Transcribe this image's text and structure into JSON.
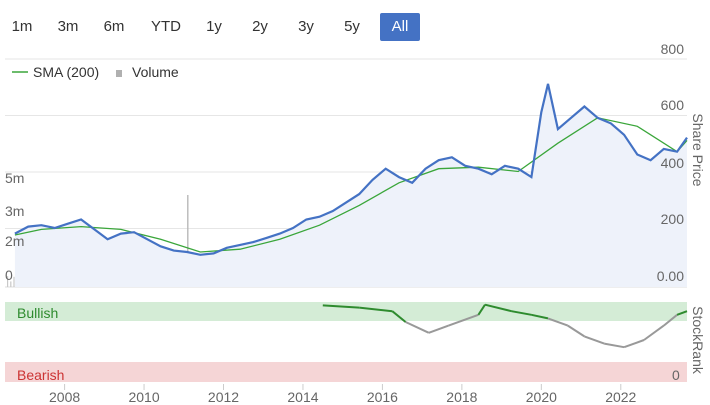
{
  "range_buttons": [
    {
      "label": "1m",
      "active": false
    },
    {
      "label": "3m",
      "active": false
    },
    {
      "label": "6m",
      "active": false
    },
    {
      "label": "YTD",
      "active": false
    },
    {
      "label": "1y",
      "active": false
    },
    {
      "label": "2y",
      "active": false
    },
    {
      "label": "3y",
      "active": false
    },
    {
      "label": "5y",
      "active": false
    },
    {
      "label": "All",
      "active": true
    }
  ],
  "legend": {
    "sma_label": "SMA (200)",
    "volume_label": "Volume"
  },
  "colors": {
    "price": "#4472c4",
    "sma": "#3aa63a",
    "volume": "#c8c8c8",
    "bullish_band": "#d4ecd6",
    "bearish_band": "#f5d5d6",
    "rank_bull": "#2e8b2e",
    "rank_neutral": "#999999"
  },
  "chart_data": {
    "type": "line",
    "x_range": [
      "2006-07",
      "2023-09"
    ],
    "x_ticks": [
      "2008",
      "2010",
      "2012",
      "2014",
      "2016",
      "2018",
      "2020",
      "2022"
    ],
    "price_axis": {
      "label": "Share Price",
      "ylim": [
        0,
        800
      ],
      "ticks": [
        "800",
        "600",
        "400",
        "200",
        "0.00"
      ]
    },
    "volume_axis": {
      "ylim": [
        0,
        7000000
      ],
      "ticks": [
        "5m",
        "3m",
        "2m",
        "0"
      ]
    },
    "price_series": {
      "name": "Share Price",
      "x": [
        "2006-10",
        "2007-02",
        "2007-06",
        "2007-10",
        "2008-02",
        "2008-06",
        "2008-10",
        "2009-02",
        "2009-06",
        "2009-10",
        "2010-02",
        "2010-06",
        "2010-10",
        "2011-02",
        "2011-06",
        "2011-10",
        "2012-02",
        "2012-06",
        "2012-10",
        "2013-02",
        "2013-06",
        "2013-10",
        "2014-02",
        "2014-06",
        "2014-10",
        "2015-02",
        "2015-06",
        "2015-10",
        "2016-02",
        "2016-06",
        "2016-10",
        "2017-02",
        "2017-06",
        "2017-10",
        "2018-02",
        "2018-06",
        "2018-10",
        "2019-02",
        "2019-06",
        "2019-10",
        "2020-01",
        "2020-03",
        "2020-06",
        "2020-10",
        "2021-02",
        "2021-06",
        "2021-10",
        "2022-02",
        "2022-06",
        "2022-10",
        "2023-02",
        "2023-06",
        "2023-09"
      ],
      "y": [
        150,
        175,
        180,
        170,
        185,
        200,
        165,
        130,
        150,
        155,
        130,
        105,
        90,
        85,
        75,
        80,
        100,
        110,
        120,
        135,
        150,
        170,
        200,
        210,
        230,
        260,
        290,
        340,
        380,
        350,
        330,
        380,
        410,
        420,
        390,
        380,
        360,
        390,
        380,
        350,
        580,
        680,
        520,
        560,
        600,
        560,
        540,
        500,
        430,
        410,
        450,
        440,
        490
      ]
    },
    "sma_series": {
      "name": "SMA (200)",
      "x": [
        "2006-10",
        "2007-06",
        "2008-06",
        "2009-06",
        "2010-06",
        "2011-06",
        "2012-06",
        "2013-06",
        "2014-06",
        "2015-06",
        "2016-06",
        "2017-06",
        "2018-06",
        "2019-06",
        "2020-06",
        "2021-06",
        "2022-06",
        "2023-06",
        "2023-09"
      ],
      "y": [
        145,
        165,
        175,
        165,
        130,
        85,
        95,
        130,
        180,
        250,
        330,
        380,
        385,
        370,
        470,
        560,
        530,
        440,
        480
      ]
    },
    "stockrank": {
      "label": "StockRank",
      "band_labels": [
        "Bullish",
        "Bearish"
      ],
      "zero_label": "0",
      "x": [
        "2014-07",
        "2015-06",
        "2016-04",
        "2016-08",
        "2017-03",
        "2017-09",
        "2018-06",
        "2018-08",
        "2019-04",
        "2019-10",
        "2020-03",
        "2020-09",
        "2021-02",
        "2021-08",
        "2022-02",
        "2022-08",
        "2023-02",
        "2023-06",
        "2023-09"
      ],
      "y": [
        98,
        95,
        90,
        75,
        60,
        70,
        85,
        99,
        90,
        85,
        80,
        70,
        55,
        45,
        40,
        50,
        70,
        85,
        90
      ]
    }
  }
}
